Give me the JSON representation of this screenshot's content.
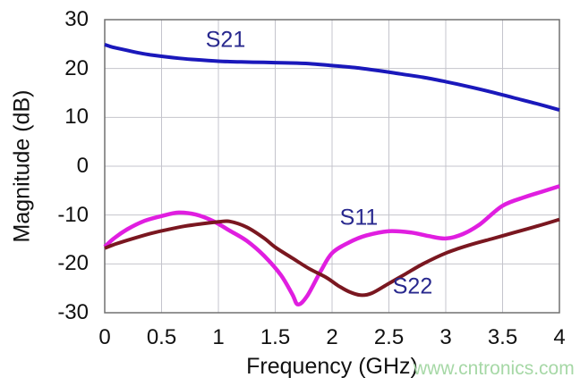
{
  "page": {
    "watermark": "www.cntronics.com"
  },
  "colors": {
    "grid": "#c4c4cc",
    "frame": "#707070",
    "axis_text": "#111111",
    "series_label": "#28288e",
    "watermark": "#a6d8a6",
    "background": "#ffffff"
  },
  "chart_data": {
    "type": "line",
    "title": "",
    "xlabel": "Frequency (GHz)",
    "ylabel": "Magnitude (dB)",
    "xlim": [
      0,
      4
    ],
    "ylim": [
      -30,
      30
    ],
    "grid": true,
    "legend_position": "inline-labels",
    "x_ticks": [
      0,
      0.5,
      1,
      1.5,
      2,
      2.5,
      3,
      3.5,
      4
    ],
    "x_tick_labels": [
      "0",
      "0.5",
      "1",
      "1.5",
      "2",
      "2.5",
      "3",
      "3.5",
      "4"
    ],
    "y_ticks": [
      30,
      20,
      10,
      0,
      -10,
      -20,
      -30
    ],
    "y_tick_labels": [
      "30",
      "20",
      "10",
      "0",
      "-10",
      "-20",
      "-30"
    ],
    "series": [
      {
        "name": "S21",
        "color": "#1a18bb",
        "stroke_width": 4,
        "points": [
          [
            0,
            24.9
          ],
          [
            0.05,
            24.5
          ],
          [
            0.1,
            24.2
          ],
          [
            0.2,
            23.7
          ],
          [
            0.3,
            23.2
          ],
          [
            0.4,
            22.8
          ],
          [
            0.5,
            22.5
          ],
          [
            0.65,
            22.1
          ],
          [
            0.8,
            21.8
          ],
          [
            1.0,
            21.5
          ],
          [
            1.2,
            21.35
          ],
          [
            1.4,
            21.25
          ],
          [
            1.6,
            21.15
          ],
          [
            1.8,
            21.0
          ],
          [
            2.0,
            20.6
          ],
          [
            2.2,
            20.2
          ],
          [
            2.4,
            19.6
          ],
          [
            2.6,
            18.9
          ],
          [
            2.8,
            18.2
          ],
          [
            3.0,
            17.3
          ],
          [
            3.2,
            16.3
          ],
          [
            3.4,
            15.2
          ],
          [
            3.6,
            14.0
          ],
          [
            3.8,
            12.8
          ],
          [
            4.0,
            11.5
          ]
        ]
      },
      {
        "name": "S11",
        "color": "#e01ee0",
        "stroke_width": 4.5,
        "points": [
          [
            0,
            -16.5
          ],
          [
            0.08,
            -14.8
          ],
          [
            0.2,
            -12.9
          ],
          [
            0.35,
            -11.2
          ],
          [
            0.5,
            -10.2
          ],
          [
            0.65,
            -9.5
          ],
          [
            0.8,
            -9.9
          ],
          [
            0.95,
            -11.2
          ],
          [
            1.1,
            -13.2
          ],
          [
            1.25,
            -15.3
          ],
          [
            1.4,
            -18.3
          ],
          [
            1.55,
            -22.3
          ],
          [
            1.65,
            -26.2
          ],
          [
            1.7,
            -28.3
          ],
          [
            1.78,
            -26.6
          ],
          [
            1.9,
            -21.5
          ],
          [
            2.0,
            -17.8
          ],
          [
            2.15,
            -15.6
          ],
          [
            2.3,
            -14.2
          ],
          [
            2.5,
            -13.3
          ],
          [
            2.7,
            -13.6
          ],
          [
            2.85,
            -14.3
          ],
          [
            3.0,
            -14.8
          ],
          [
            3.15,
            -13.9
          ],
          [
            3.3,
            -11.9
          ],
          [
            3.5,
            -8.1
          ],
          [
            3.7,
            -6.3
          ],
          [
            3.85,
            -5.2
          ],
          [
            4.0,
            -4.1
          ]
        ]
      },
      {
        "name": "S22",
        "color": "#7a1720",
        "stroke_width": 4,
        "points": [
          [
            0,
            -16.8
          ],
          [
            0.1,
            -15.9
          ],
          [
            0.25,
            -14.8
          ],
          [
            0.4,
            -13.8
          ],
          [
            0.55,
            -13.0
          ],
          [
            0.7,
            -12.3
          ],
          [
            0.85,
            -11.8
          ],
          [
            1.0,
            -11.4
          ],
          [
            1.1,
            -11.3
          ],
          [
            1.25,
            -12.5
          ],
          [
            1.4,
            -14.7
          ],
          [
            1.5,
            -16.6
          ],
          [
            1.65,
            -18.8
          ],
          [
            1.8,
            -21.0
          ],
          [
            1.95,
            -22.8
          ],
          [
            2.05,
            -24.4
          ],
          [
            2.15,
            -25.7
          ],
          [
            2.25,
            -26.4
          ],
          [
            2.35,
            -26.0
          ],
          [
            2.5,
            -24.0
          ],
          [
            2.65,
            -22.0
          ],
          [
            2.8,
            -20.0
          ],
          [
            3.0,
            -17.8
          ],
          [
            3.2,
            -16.2
          ],
          [
            3.4,
            -14.9
          ],
          [
            3.6,
            -13.6
          ],
          [
            3.8,
            -12.3
          ],
          [
            4.0,
            -10.9
          ]
        ]
      }
    ]
  }
}
